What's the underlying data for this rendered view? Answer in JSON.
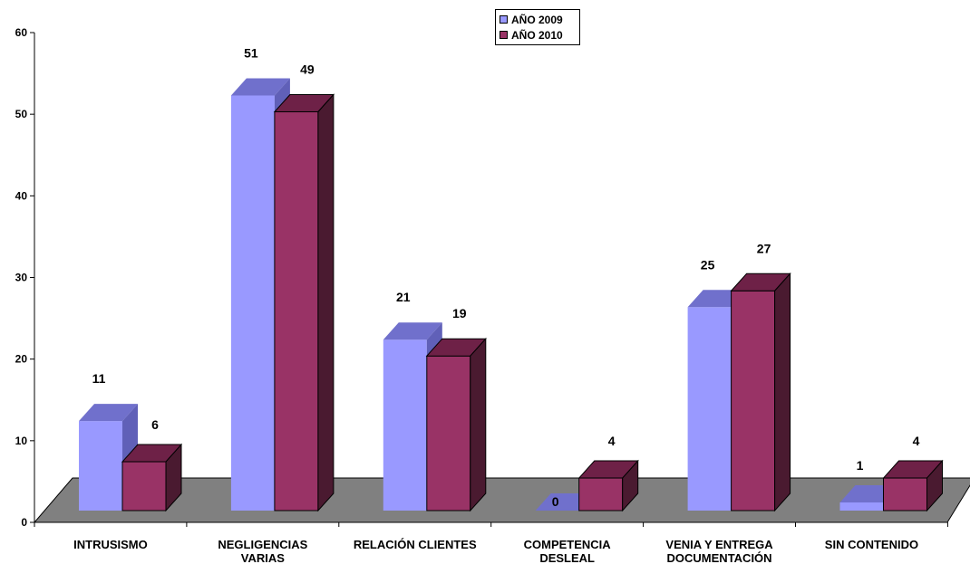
{
  "chart_data": {
    "type": "bar",
    "categories": [
      [
        "INTRUSISMO"
      ],
      [
        "NEGLIGENCIAS",
        "VARIAS"
      ],
      [
        "RELACIÓN CLIENTES"
      ],
      [
        "COMPETENCIA",
        "DESLEAL"
      ],
      [
        "VENIA Y ENTREGA",
        "DOCUMENTACIÓN"
      ],
      [
        "SIN CONTENIDO"
      ]
    ],
    "series": [
      {
        "name": "AÑO 2009",
        "values": [
          11,
          51,
          21,
          0,
          25,
          1
        ],
        "color": "#9999ff",
        "top_color": "#7070cc",
        "side_color": "#6060b8"
      },
      {
        "name": "AÑO 2010",
        "values": [
          6,
          49,
          19,
          4,
          27,
          4
        ],
        "color": "#993366",
        "top_color": "#6e2147",
        "side_color": "#4a1a30"
      }
    ],
    "y_ticks": [
      0,
      10,
      20,
      30,
      40,
      50,
      60
    ],
    "ylim": [
      0,
      60
    ],
    "floor_color": "#808080",
    "grid": false,
    "legend_position": "top-center"
  }
}
